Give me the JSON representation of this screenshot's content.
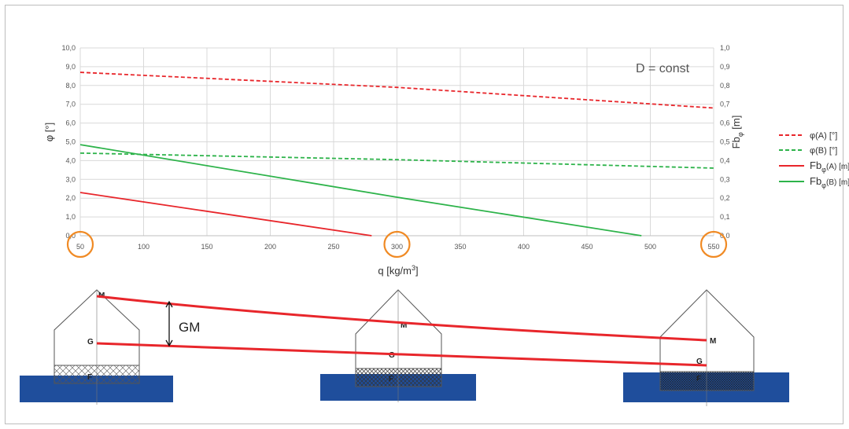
{
  "chart_data": {
    "type": "line",
    "annotation": "D = const",
    "xlabel": "q [kg/m3]",
    "ylabel_left": "φ [°]",
    "ylabel_right": "Fbφ [m]",
    "xlim": [
      50,
      550
    ],
    "ylim_left": [
      0,
      10
    ],
    "ylim_right": [
      0,
      1
    ],
    "x_ticks": [
      "50",
      "100",
      "150",
      "200",
      "250",
      "300",
      "350",
      "400",
      "450",
      "500",
      "550"
    ],
    "y_left_ticks": [
      "0,0",
      "1,0",
      "2,0",
      "3,0",
      "4,0",
      "5,0",
      "6,0",
      "7,0",
      "8,0",
      "9,0",
      "10,0"
    ],
    "y_right_ticks": [
      "0,0",
      "0,1",
      "0,2",
      "0,3",
      "0,4",
      "0,5",
      "0,6",
      "0,7",
      "0,8",
      "0,9",
      "1,0"
    ],
    "highlighted_x": [
      50,
      300,
      550
    ],
    "grid": true,
    "legend_position": "right",
    "series": [
      {
        "name": "φ(A) [°]",
        "axis": "left",
        "style": "dashed",
        "color": "#e8262b",
        "x": [
          50,
          300,
          550
        ],
        "y": [
          8.7,
          7.9,
          6.8
        ]
      },
      {
        "name": "φ(B) [°]",
        "axis": "left",
        "style": "dashed",
        "color": "#2db34a",
        "x": [
          50,
          300,
          550
        ],
        "y": [
          4.4,
          4.05,
          3.6
        ]
      },
      {
        "name": "Fbφ(A) [m]",
        "axis": "right",
        "style": "solid",
        "color": "#e8262b",
        "x": [
          50,
          280
        ],
        "y": [
          0.23,
          0.0
        ]
      },
      {
        "name": "Fbφ(B) [m]",
        "axis": "right",
        "style": "solid",
        "color": "#2db34a",
        "x": [
          50,
          300,
          493
        ],
        "y": [
          0.485,
          0.205,
          0.0
        ]
      }
    ],
    "legend": [
      {
        "main": "φ(A) [°]",
        "sub": ""
      },
      {
        "main": "φ(B) [°]",
        "sub": ""
      },
      {
        "main": "Fb",
        "sub": "φ",
        "tail": "(A) [m]"
      },
      {
        "main": "Fb",
        "sub": "φ",
        "tail": "(B) [m]"
      }
    ]
  },
  "diagram": {
    "gm_label": "GM",
    "houses": [
      {
        "m_label": "M",
        "g_label": "G",
        "f_label": "F"
      },
      {
        "m_label": "M",
        "g_label": "G",
        "f_label": "F"
      },
      {
        "m_label": "M",
        "g_label": "G",
        "f_label": "F"
      }
    ],
    "colors": {
      "water": "#1f4e9c",
      "line": "#e8262b",
      "outline": "#555555",
      "highlight": "#f08a24"
    }
  }
}
